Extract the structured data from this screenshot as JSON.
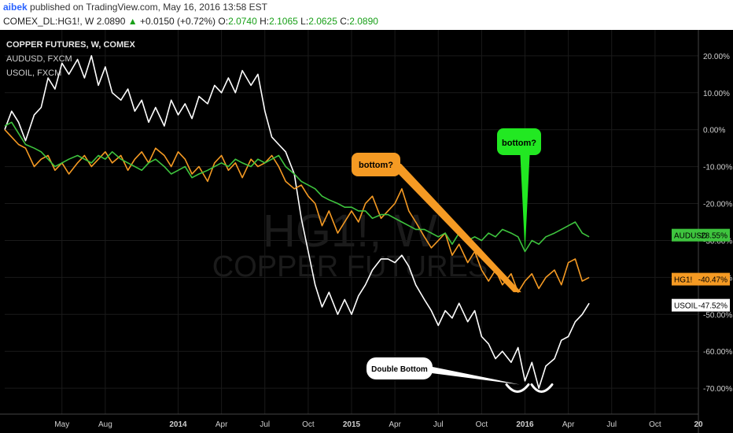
{
  "header": {
    "author": "aibek",
    "published": "published on TradingView.com, May 16, 2016 13:58 EST",
    "symbol": "COMEX_DL:HG1!, W",
    "price": "2.0890",
    "change": "+0.0150 (+0.72%)",
    "o_label": "O:",
    "o": "2.0740",
    "h_label": "H:",
    "h": "2.1065",
    "l_label": "L:",
    "l": "2.0625",
    "c_label": "C:",
    "c": "2.0890"
  },
  "colors": {
    "copper": "#f59a23",
    "audusd": "#3ec43e",
    "usoil": "#ffffff",
    "callout_green": "#22e822",
    "callout_orange": "#f59a23"
  },
  "chart_data": {
    "type": "line",
    "legend": [
      "COPPER FUTURES, W, COMEX",
      "AUDUSD, FXCM",
      "USOIL, FXCM"
    ],
    "watermark": [
      "HG1!, W",
      "COPPER FUTURES"
    ],
    "ylabel": "",
    "y_ticks": [
      "20.00%",
      "10.00%",
      "0.00%",
      "-10.00%",
      "-20.00%",
      "-30.00%",
      "-40.00%",
      "-50.00%",
      "-60.00%",
      "-70.00%"
    ],
    "y_tick_values": [
      20,
      10,
      0,
      -10,
      -20,
      -30,
      -40,
      -50,
      -60,
      -70
    ],
    "ylim": [
      -77,
      27
    ],
    "x_ticks": [
      "May",
      "Aug",
      "2014",
      "Apr",
      "Jul",
      "Oct",
      "2015",
      "Apr",
      "Jul",
      "Oct",
      "2016",
      "Apr",
      "Jul",
      "Oct",
      "20"
    ],
    "x_tick_values": [
      2013.33,
      2013.58,
      2014.0,
      2014.25,
      2014.5,
      2014.75,
      2015.0,
      2015.25,
      2015.5,
      2015.75,
      2016.0,
      2016.25,
      2016.5,
      2016.75,
      2017.0
    ],
    "xlim": [
      2013.0,
      2017.0
    ],
    "series": [
      {
        "name": "USOIL",
        "color_key": "usoil",
        "x": [
          2013.0,
          2013.04,
          2013.08,
          2013.12,
          2013.17,
          2013.21,
          2013.25,
          2013.29,
          2013.33,
          2013.37,
          2013.42,
          2013.46,
          2013.5,
          2013.54,
          2013.58,
          2013.62,
          2013.67,
          2013.71,
          2013.75,
          2013.79,
          2013.83,
          2013.87,
          2013.92,
          2013.96,
          2014.0,
          2014.04,
          2014.08,
          2014.12,
          2014.17,
          2014.21,
          2014.25,
          2014.29,
          2014.33,
          2014.37,
          2014.42,
          2014.46,
          2014.5,
          2014.54,
          2014.58,
          2014.62,
          2014.67,
          2014.71,
          2014.75,
          2014.79,
          2014.83,
          2014.87,
          2014.92,
          2014.96,
          2015.0,
          2015.04,
          2015.08,
          2015.12,
          2015.17,
          2015.21,
          2015.25,
          2015.29,
          2015.33,
          2015.37,
          2015.42,
          2015.46,
          2015.5,
          2015.54,
          2015.58,
          2015.62,
          2015.67,
          2015.71,
          2015.75,
          2015.79,
          2015.83,
          2015.87,
          2015.92,
          2015.96,
          2016.0,
          2016.04,
          2016.08,
          2016.12,
          2016.17,
          2016.21,
          2016.25,
          2016.29,
          2016.33,
          2016.37
        ],
        "values": [
          0,
          5,
          2,
          -3,
          4,
          6,
          14,
          11,
          18,
          15,
          19,
          14,
          20,
          12,
          17,
          10,
          8,
          11,
          5,
          8,
          2,
          6,
          1,
          8,
          4,
          7,
          3,
          9,
          7,
          12,
          10,
          14,
          10,
          16,
          12,
          15,
          5,
          -2,
          -4,
          -6,
          -12,
          -24,
          -33,
          -42,
          -48,
          -44,
          -50,
          -46,
          -50,
          -45,
          -42,
          -38,
          -35,
          -35,
          -36,
          -34,
          -37,
          -42,
          -46,
          -49,
          -53,
          -49,
          -51,
          -47,
          -52,
          -49,
          -56,
          -58,
          -62,
          -60,
          -63,
          -59,
          -68,
          -63,
          -70,
          -64,
          -62,
          -57,
          -56,
          -52,
          -50,
          -47
        ]
      },
      {
        "name": "HG1!",
        "color_key": "copper",
        "x": [
          2013.0,
          2013.04,
          2013.08,
          2013.12,
          2013.17,
          2013.21,
          2013.25,
          2013.29,
          2013.33,
          2013.37,
          2013.42,
          2013.46,
          2013.5,
          2013.54,
          2013.58,
          2013.62,
          2013.67,
          2013.71,
          2013.75,
          2013.79,
          2013.83,
          2013.87,
          2013.92,
          2013.96,
          2014.0,
          2014.04,
          2014.08,
          2014.12,
          2014.17,
          2014.21,
          2014.25,
          2014.29,
          2014.33,
          2014.37,
          2014.42,
          2014.46,
          2014.5,
          2014.54,
          2014.58,
          2014.62,
          2014.67,
          2014.71,
          2014.75,
          2014.79,
          2014.83,
          2014.87,
          2014.92,
          2014.96,
          2015.0,
          2015.04,
          2015.08,
          2015.12,
          2015.17,
          2015.21,
          2015.25,
          2015.29,
          2015.33,
          2015.37,
          2015.42,
          2015.46,
          2015.5,
          2015.54,
          2015.58,
          2015.62,
          2015.67,
          2015.71,
          2015.75,
          2015.79,
          2015.83,
          2015.87,
          2015.92,
          2015.96,
          2016.0,
          2016.04,
          2016.08,
          2016.12,
          2016.17,
          2016.21,
          2016.25,
          2016.29,
          2016.33,
          2016.37
        ],
        "values": [
          0,
          -2,
          -4,
          -5,
          -10,
          -8,
          -7,
          -11,
          -9,
          -12,
          -9,
          -7,
          -10,
          -8,
          -6,
          -9,
          -7,
          -11,
          -8,
          -6,
          -9,
          -5,
          -7,
          -10,
          -6,
          -8,
          -12,
          -10,
          -14,
          -9,
          -7,
          -11,
          -9,
          -13,
          -8,
          -10,
          -9,
          -7,
          -10,
          -14,
          -16,
          -15,
          -18,
          -20,
          -26,
          -22,
          -28,
          -25,
          -22,
          -25,
          -20,
          -18,
          -24,
          -22,
          -20,
          -16,
          -22,
          -25,
          -29,
          -32,
          -30,
          -28,
          -34,
          -31,
          -36,
          -33,
          -38,
          -41,
          -38,
          -42,
          -39,
          -44,
          -41,
          -39,
          -43,
          -40,
          -38,
          -42,
          -36,
          -35,
          -41,
          -40
        ]
      },
      {
        "name": "AUDUSD",
        "color_key": "audusd",
        "x": [
          2013.0,
          2013.04,
          2013.08,
          2013.12,
          2013.17,
          2013.21,
          2013.25,
          2013.29,
          2013.33,
          2013.37,
          2013.42,
          2013.46,
          2013.5,
          2013.54,
          2013.58,
          2013.62,
          2013.67,
          2013.71,
          2013.75,
          2013.79,
          2013.83,
          2013.87,
          2013.92,
          2013.96,
          2014.0,
          2014.04,
          2014.08,
          2014.12,
          2014.17,
          2014.21,
          2014.25,
          2014.29,
          2014.33,
          2014.37,
          2014.42,
          2014.46,
          2014.5,
          2014.54,
          2014.58,
          2014.62,
          2014.67,
          2014.71,
          2014.75,
          2014.79,
          2014.83,
          2014.87,
          2014.92,
          2014.96,
          2015.0,
          2015.04,
          2015.08,
          2015.12,
          2015.17,
          2015.21,
          2015.25,
          2015.29,
          2015.33,
          2015.37,
          2015.42,
          2015.46,
          2015.5,
          2015.54,
          2015.58,
          2015.62,
          2015.67,
          2015.71,
          2015.75,
          2015.79,
          2015.83,
          2015.87,
          2015.92,
          2015.96,
          2016.0,
          2016.04,
          2016.08,
          2016.12,
          2016.17,
          2016.21,
          2016.25,
          2016.29,
          2016.33,
          2016.37
        ],
        "values": [
          1,
          2,
          -1,
          -4,
          -5,
          -6,
          -8,
          -10,
          -9,
          -8,
          -7,
          -8,
          -9,
          -7,
          -8,
          -6,
          -8,
          -9,
          -10,
          -11,
          -9,
          -8,
          -10,
          -12,
          -11,
          -10,
          -13,
          -12,
          -11,
          -10,
          -9,
          -10,
          -8,
          -9,
          -10,
          -8,
          -9,
          -8,
          -7,
          -10,
          -12,
          -14,
          -15,
          -16,
          -18,
          -19,
          -20,
          -21,
          -21,
          -22,
          -22,
          -24,
          -23,
          -23,
          -24,
          -25,
          -26,
          -27,
          -27,
          -28,
          -29,
          -28,
          -31,
          -28,
          -30,
          -29,
          -30,
          -28,
          -29,
          -27,
          -28,
          -29,
          -33,
          -30,
          -31,
          -29,
          -28,
          -27,
          -26,
          -25,
          -28,
          -29
        ]
      }
    ],
    "price_tags": [
      {
        "label": "AUDUSD",
        "value": "-28.55%",
        "color_key": "audusd",
        "y": -28.55
      },
      {
        "label": "HG1!",
        "value": "-40.47%",
        "color_key": "copper",
        "y": -40.47
      },
      {
        "label": "USOIL",
        "value": "-47.52%",
        "color_key": "usoil",
        "y": -47.52
      }
    ],
    "annotations": [
      {
        "text": "bottom?",
        "color_key": "callout_green",
        "anchor_x": 2016.0,
        "anchor_y": -33
      },
      {
        "text": "bottom?",
        "color_key": "callout_orange",
        "anchor_x": 2015.97,
        "anchor_y": -44
      },
      {
        "text": "Double Bottom",
        "color_key": "usoil",
        "anchor_x": 2015.97,
        "anchor_y": -69
      }
    ]
  }
}
